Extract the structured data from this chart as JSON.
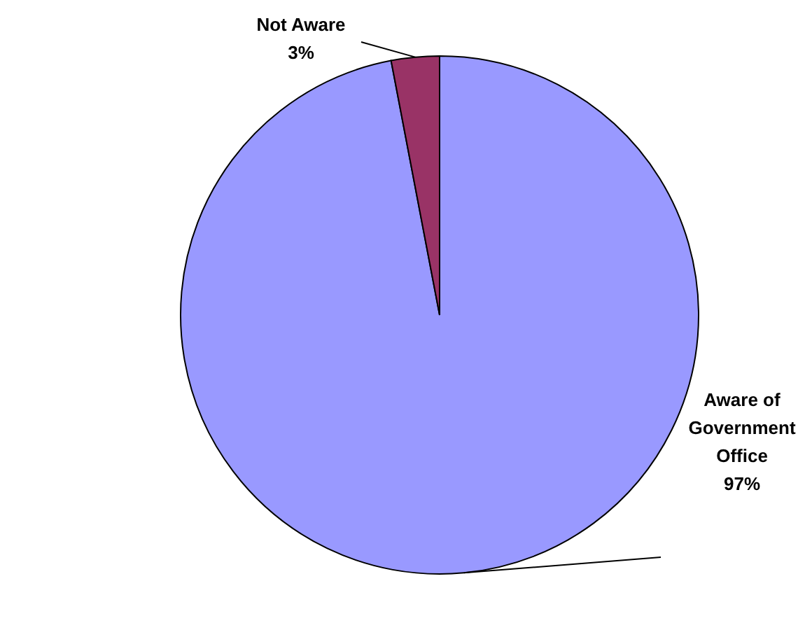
{
  "chart_data": {
    "type": "pie",
    "categories": [
      "Aware of Government Office",
      "Not Aware"
    ],
    "values": [
      97,
      3
    ],
    "colors": [
      "#9999ff",
      "#993366"
    ],
    "value_labels": [
      "97%",
      "3%"
    ]
  }
}
